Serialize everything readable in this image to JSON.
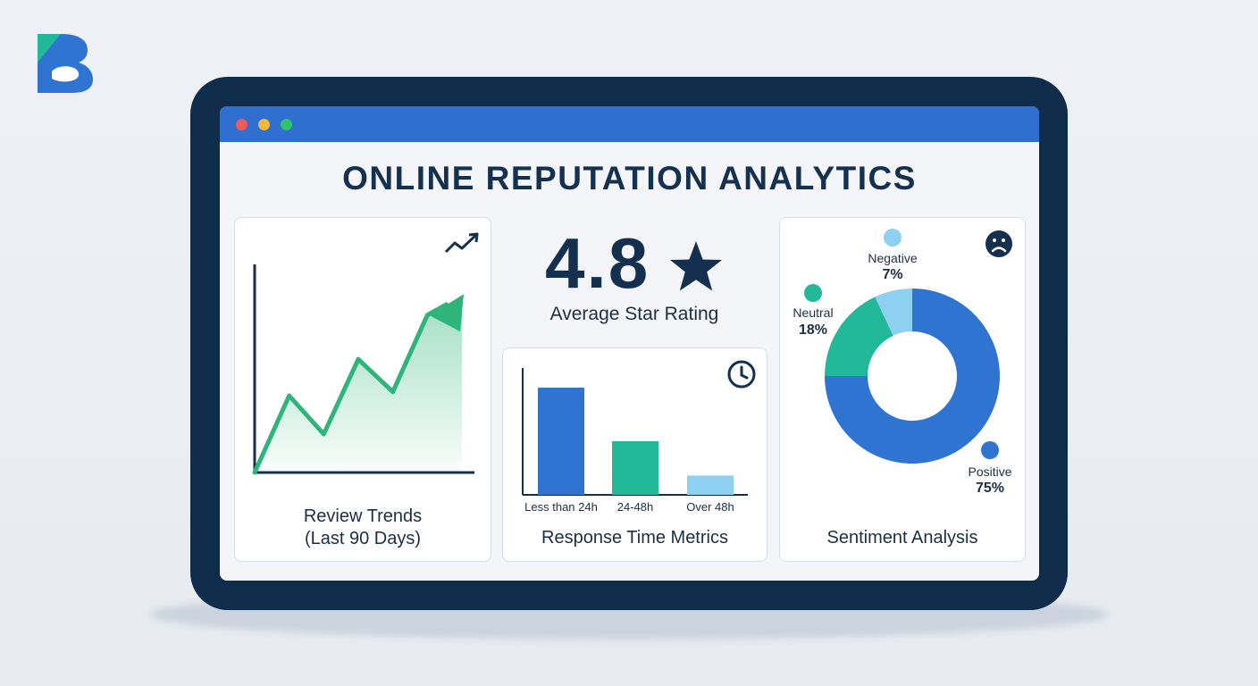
{
  "page": {
    "title": "ONLINE REPUTATION ANALYTICS"
  },
  "colors": {
    "background": "#eef1f5",
    "device_frame": "#0f2d4a",
    "titlebar": "#2e6fcf",
    "primary_blue": "#2f74d0",
    "teal": "#22b89a",
    "light_blue": "#8dd0ef",
    "trend_green": "#2fb57a",
    "text_dark": "#15304e"
  },
  "window_controls": [
    "close",
    "minimize",
    "maximize"
  ],
  "icons": {
    "logo": "brand-b-logo",
    "trend": "trending-up-icon",
    "rating": "star-icon",
    "response": "clock-icon",
    "sentiment": "sad-face-icon"
  },
  "rating": {
    "value": "4.8",
    "label": "Average Star Rating"
  },
  "review_trends": {
    "label_line1": "Review Trends",
    "label_line2": "(Last 90 Days)"
  },
  "response_time": {
    "label": "Response Time Metrics"
  },
  "sentiment": {
    "label": "Sentiment Analysis"
  },
  "chart_data": [
    {
      "type": "line",
      "title": "Review Trends (Last 90 Days)",
      "x": [
        0,
        1,
        2,
        3,
        4,
        5,
        6
      ],
      "values": [
        0,
        40,
        20,
        59,
        42,
        82,
        92
      ],
      "trend": "upward",
      "area_fill": true,
      "color": "#2fb57a"
    },
    {
      "type": "bar",
      "title": "Response Time Metrics",
      "categories": [
        "Less than 24h",
        "24-48h",
        "Over 48h"
      ],
      "values": [
        100,
        50,
        18
      ],
      "colors": [
        "#2f74d0",
        "#22b89a",
        "#8dd0ef"
      ]
    },
    {
      "type": "pie",
      "title": "Sentiment Analysis",
      "donut": true,
      "categories": [
        "Positive",
        "Neutral",
        "Negative"
      ],
      "values": [
        75,
        18,
        7
      ],
      "labels": [
        "75%",
        "18%",
        "7%"
      ],
      "colors": [
        "#2f74d0",
        "#22b89a",
        "#8dd0ef"
      ]
    }
  ]
}
